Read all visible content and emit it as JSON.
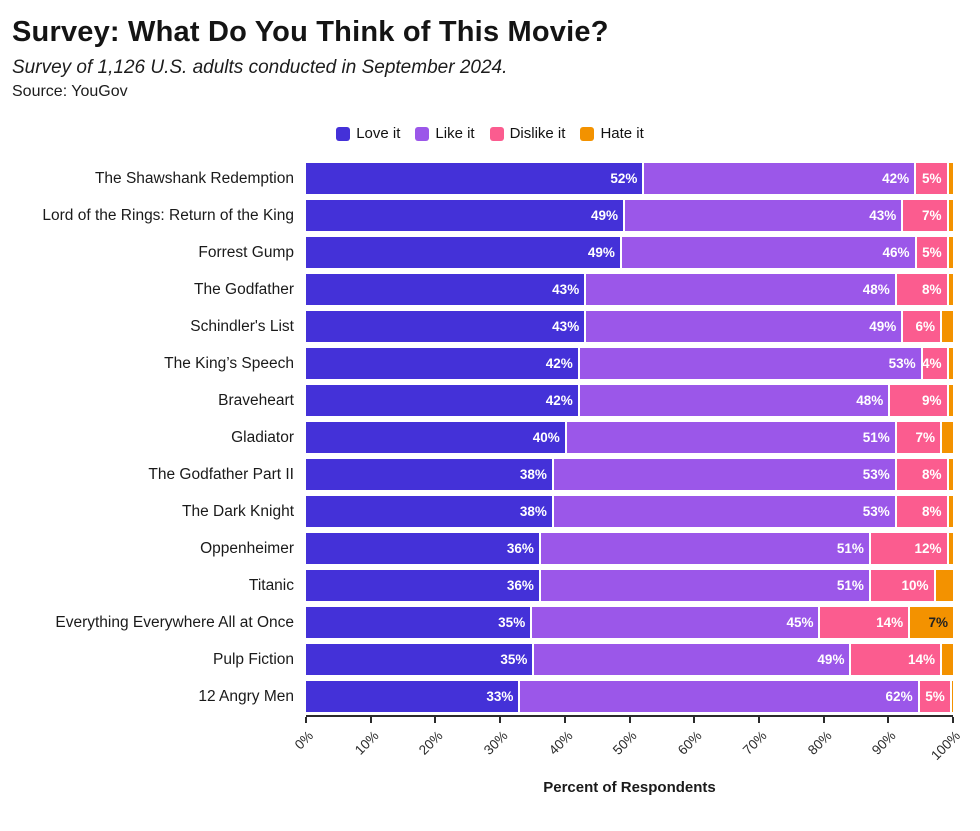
{
  "chart_data": {
    "type": "bar",
    "orientation": "horizontal",
    "stacked": true,
    "title": "Survey: What Do You Think of This Movie?",
    "subtitle": "Survey of 1,126 U.S. adults conducted in September 2024.",
    "source": "Source: YouGov",
    "xlabel": "Percent of Respondents",
    "legend_position": "top",
    "grid": false,
    "xlim": [
      0,
      100
    ],
    "x_ticks": [
      "0%",
      "10%",
      "20%",
      "30%",
      "40%",
      "50%",
      "60%",
      "70%",
      "80%",
      "90%",
      "100%"
    ],
    "label_min_value": 4,
    "categories": [
      "The Shawshank Redemption",
      "Lord of the Rings: Return of the King",
      "Forrest Gump",
      "The Godfather",
      "Schindler's List",
      "The King’s Speech",
      "Braveheart",
      "Gladiator",
      "The Godfather Part II",
      "The Dark Knight",
      "Oppenheimer",
      "Titanic",
      "Everything Everywhere All at Once",
      "Pulp Fiction",
      "12 Angry Men"
    ],
    "series": [
      {
        "name": "Love it",
        "color": "#4431d8",
        "label_color": "#ffffff",
        "values": [
          52,
          49,
          49,
          43,
          43,
          42,
          42,
          40,
          38,
          38,
          36,
          36,
          35,
          35,
          33
        ]
      },
      {
        "name": "Like it",
        "color": "#9b57e9",
        "label_color": "#ffffff",
        "values": [
          42,
          43,
          46,
          48,
          49,
          53,
          48,
          51,
          53,
          53,
          51,
          51,
          45,
          49,
          62
        ]
      },
      {
        "name": "Dislike it",
        "color": "#fb5c8f",
        "label_color": "#ffffff",
        "values": [
          5,
          7,
          5,
          8,
          6,
          4,
          9,
          7,
          8,
          8,
          12,
          10,
          14,
          14,
          5
        ]
      },
      {
        "name": "Hate it",
        "color": "#f39200",
        "label_color": "#222222",
        "values": [
          1,
          1,
          1,
          1,
          2,
          1,
          1,
          2,
          1,
          1,
          1,
          3,
          7,
          2,
          0.5
        ]
      }
    ]
  }
}
